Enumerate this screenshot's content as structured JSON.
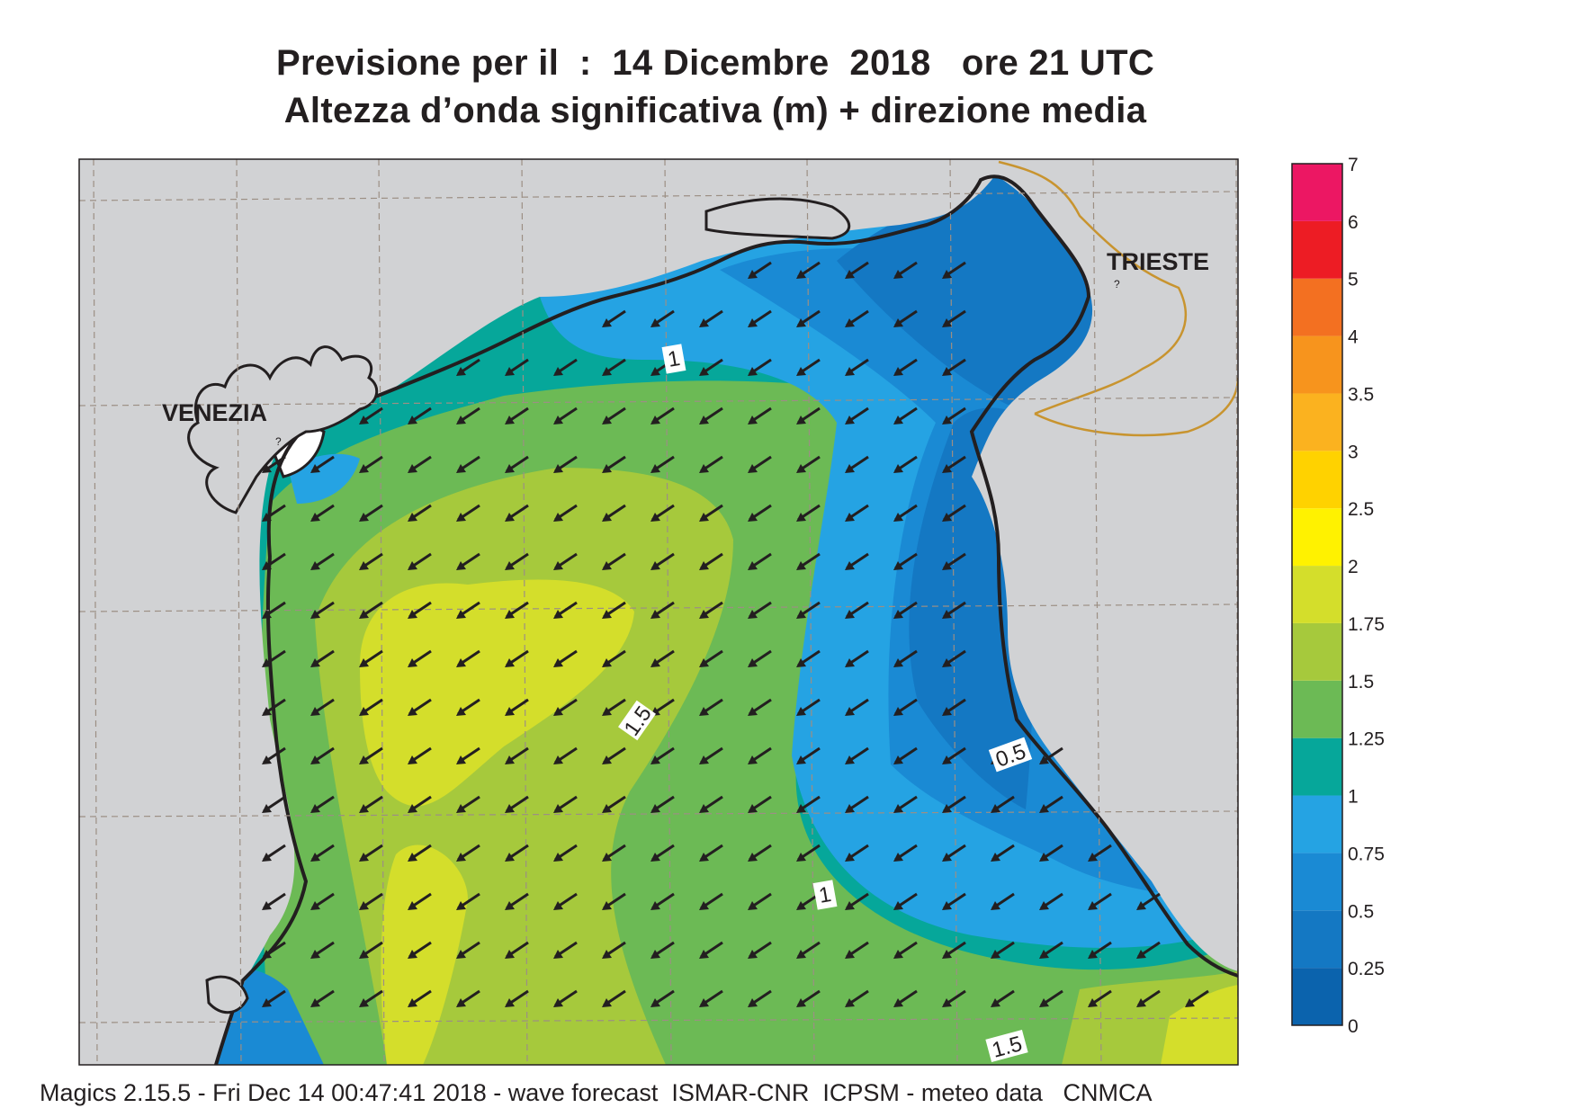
{
  "title_line1": "Previsione per il  :  14 Dicembre  2018   ore 21 UTC",
  "title_line2": "Altezza d’onda significativa (m) + direzione media",
  "cities": {
    "venezia": "VENEZIA",
    "trieste": "TRIESTE"
  },
  "contour_labels": [
    "1",
    "1.5",
    "0.5",
    "1",
    "1.5"
  ],
  "legend": {
    "ticks": [
      "0",
      "0.25",
      "0.5",
      "0.75",
      "1",
      "1.25",
      "1.5",
      "1.75",
      "2",
      "2.5",
      "3",
      "3.5",
      "4",
      "5",
      "6",
      "7"
    ],
    "colors": [
      "#0b63ad",
      "#1478c3",
      "#1a8ad4",
      "#25a3e3",
      "#06a79a",
      "#6cba55",
      "#a6c93c",
      "#d4de2b",
      "#fff200",
      "#ffd200",
      "#fbb21f",
      "#f7941d",
      "#f37021",
      "#ed1c24",
      "#ec1763"
    ]
  },
  "colors": {
    "land": "#d1d2d4",
    "coast": "#231f20",
    "border": "#c8942f",
    "grid": "#9c8f84",
    "arrow": "#231f20"
  },
  "wave_direction": "south-west",
  "footer": "Magics 2.15.5 - Fri Dec 14 00:47:41 2018 - wave forecast  ISMAR-CNR  ICPSM - meteo data   CNMCA"
}
